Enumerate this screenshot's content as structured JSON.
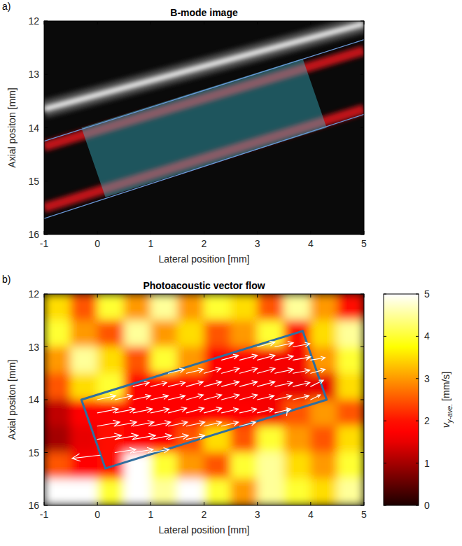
{
  "chart_data": [
    {
      "type": "image",
      "panel_label": "a)",
      "title": "B-mode image",
      "xlabel": "Lateral position [mm]",
      "ylabel": "Axial positon [mm]",
      "xlim": [
        -1,
        5
      ],
      "ylim": [
        16,
        12
      ],
      "xticks": [
        -1,
        0,
        1,
        2,
        3,
        4,
        5
      ],
      "yticks": [
        12,
        13,
        14,
        15,
        16
      ],
      "wall": {
        "x": [
          -1,
          5
        ],
        "y": [
          13.65,
          12.05
        ]
      },
      "signal": [
        {
          "x": [
            -1,
            5
          ],
          "y": [
            14.35,
            12.55
          ]
        },
        {
          "x": [
            -1,
            5
          ],
          "y": [
            15.5,
            13.65
          ]
        }
      ],
      "vessel_outline": [
        {
          "x": [
            -1,
            5
          ],
          "y": [
            14.25,
            12.35
          ]
        },
        {
          "x": [
            -1,
            5
          ],
          "y": [
            15.7,
            13.75
          ]
        }
      ],
      "roi": {
        "x": [
          -0.3,
          3.85,
          4.3,
          0.15
        ],
        "y": [
          14.0,
          12.7,
          14.0,
          15.3
        ]
      }
    },
    {
      "type": "heatmap",
      "panel_label": "b)",
      "title": "Photoacoustic vector flow",
      "xlabel": "Lateral position [mm]",
      "ylabel": "Axial positon [mm]",
      "xlim": [
        -1,
        5
      ],
      "ylim": [
        16,
        12
      ],
      "xticks": [
        -1,
        0,
        1,
        2,
        3,
        4,
        5
      ],
      "yticks": [
        12,
        13,
        14,
        15,
        16
      ],
      "cell_x": [
        -0.75,
        -0.25,
        0.25,
        0.75,
        1.25,
        1.75,
        2.25,
        2.75,
        3.25,
        3.75,
        4.25,
        4.75
      ],
      "cell_y": [
        12.25,
        12.75,
        13.25,
        13.75,
        14.25,
        14.75,
        15.25,
        15.75
      ],
      "cells": [
        [
          3.5,
          2.5,
          4.0,
          3.0,
          4.5,
          3.0,
          4.0,
          3.5,
          2.5,
          4.5,
          3.0,
          2.0
        ],
        [
          4.0,
          3.0,
          2.5,
          4.5,
          3.0,
          3.5,
          2.5,
          3.0,
          4.0,
          2.0,
          3.5,
          4.5
        ],
        [
          3.0,
          4.5,
          3.5,
          2.5,
          4.0,
          3.0,
          1.8,
          1.7,
          1.6,
          1.6,
          3.0,
          4.0
        ],
        [
          2.5,
          3.5,
          4.0,
          1.8,
          1.7,
          1.7,
          1.6,
          1.6,
          1.6,
          1.5,
          1.5,
          3.5
        ],
        [
          1.2,
          1.7,
          1.8,
          1.7,
          1.9,
          1.8,
          1.7,
          1.7,
          1.6,
          2.5,
          3.0,
          2.5
        ],
        [
          1.0,
          1.5,
          2.0,
          1.9,
          1.8,
          2.5,
          3.5,
          2.5,
          4.0,
          3.0,
          2.5,
          3.5
        ],
        [
          2.5,
          1.8,
          2.0,
          5.0,
          4.0,
          3.0,
          2.5,
          4.0,
          4.5,
          3.5,
          3.0,
          4.0
        ],
        [
          5.0,
          5.0,
          4.0,
          5.0,
          4.5,
          5.0,
          4.0,
          3.0,
          4.5,
          4.0,
          3.5,
          4.5
        ]
      ],
      "colorbar": {
        "range": [
          0,
          5
        ],
        "ticks": [
          0,
          1,
          2,
          3,
          4,
          5
        ],
        "label": {
          "symbol": "v",
          "subscript": "y-ave.",
          "unit": "[mm/s]"
        }
      },
      "roi": {
        "x": [
          -0.3,
          3.85,
          4.3,
          0.15
        ],
        "y": [
          14.0,
          12.7,
          14.0,
          15.3
        ]
      },
      "vectors": [
        {
          "y": 13.0,
          "x": [
            3.0,
            3.33,
            3.67
          ],
          "u": [
            2.2,
            2.3,
            2.1
          ],
          "v": [
            -0.6,
            -0.5,
            -0.4
          ]
        },
        {
          "y": 13.25,
          "x": [
            2.33,
            2.67,
            3.0,
            3.33,
            3.67,
            4.0
          ],
          "u": [
            2.1,
            2.2,
            2.2,
            2.3,
            2.2,
            1.8
          ],
          "v": [
            -0.6,
            -0.6,
            -0.6,
            -0.5,
            -0.4,
            -0.3
          ]
        },
        {
          "y": 13.5,
          "x": [
            1.33,
            1.67,
            2.0,
            2.33,
            2.67,
            3.0,
            3.33,
            3.67,
            4.0
          ],
          "u": [
            2.0,
            2.1,
            2.1,
            2.2,
            2.2,
            2.2,
            2.3,
            2.1,
            1.8
          ],
          "v": [
            -0.5,
            -0.5,
            -0.6,
            -0.6,
            -0.6,
            -0.6,
            -0.5,
            -0.4,
            -0.5
          ]
        },
        {
          "y": 13.75,
          "x": [
            0.67,
            1.0,
            1.33,
            1.67,
            2.0,
            2.33,
            2.67,
            3.0,
            3.33,
            3.67,
            4.0
          ],
          "u": [
            2.0,
            2.0,
            2.1,
            2.1,
            2.2,
            2.2,
            2.2,
            2.2,
            2.2,
            2.1,
            1.6
          ],
          "v": [
            -0.5,
            -0.5,
            -0.5,
            -0.6,
            -0.6,
            -0.6,
            -0.6,
            -0.6,
            -0.5,
            -0.5,
            -0.8
          ]
        },
        {
          "y": 14.0,
          "x": [
            0,
            0.33,
            0.67,
            1.0,
            1.33,
            1.67,
            2.0,
            2.33,
            2.67,
            3.0,
            3.33,
            3.67,
            4.0
          ],
          "u": [
            2.3,
            2.2,
            2.2,
            2.2,
            2.1,
            2.1,
            2.2,
            2.2,
            2.2,
            2.1,
            2.1,
            2.0,
            1.2
          ],
          "v": [
            -0.5,
            -0.5,
            -0.5,
            -0.5,
            -0.5,
            -0.6,
            -0.6,
            -0.6,
            -0.6,
            -0.5,
            -0.5,
            -0.5,
            -0.6
          ]
        },
        {
          "y": 14.25,
          "x": [
            0,
            0.33,
            0.67,
            1.0,
            1.33,
            1.67,
            2.0,
            2.33,
            2.67,
            3.0,
            3.33
          ],
          "u": [
            2.6,
            2.5,
            2.4,
            2.3,
            2.3,
            2.2,
            2.2,
            2.1,
            2.1,
            2.0,
            2.0
          ],
          "v": [
            -0.5,
            -0.5,
            -0.5,
            -0.5,
            -0.6,
            -0.6,
            -0.6,
            -0.5,
            -0.5,
            -0.5,
            -0.5
          ]
        },
        {
          "y": 14.3,
          "x": [
            3.55
          ],
          "u": [
            0.1
          ],
          "v": [
            -0.9
          ]
        },
        {
          "y": 14.5,
          "x": [
            0,
            0.33,
            0.67,
            1.0,
            1.33,
            1.67,
            2.0,
            2.33,
            2.67
          ],
          "u": [
            2.8,
            2.7,
            2.6,
            2.5,
            2.4,
            2.3,
            2.2,
            2.1,
            2.0
          ],
          "v": [
            -0.5,
            -0.5,
            -0.5,
            -0.5,
            -0.5,
            -0.5,
            -0.5,
            -0.5,
            -0.5
          ]
        },
        {
          "y": 14.75,
          "x": [
            0,
            0.33,
            0.67,
            1.0,
            1.33,
            1.67
          ],
          "u": [
            3.0,
            2.9,
            2.8,
            2.6,
            2.5,
            2.3
          ],
          "v": [
            -0.5,
            -0.5,
            -0.5,
            -0.5,
            -0.5,
            -0.5
          ]
        },
        {
          "y": 15.0,
          "x": [
            0.33,
            0.67,
            1.0
          ],
          "u": [
            2.6,
            2.5,
            2.3
          ],
          "v": [
            -0.4,
            -0.4,
            -0.4
          ]
        },
        {
          "y": 15.05,
          "x": [
            0.05
          ],
          "u": [
            -3.5
          ],
          "v": [
            0.4
          ]
        }
      ]
    }
  ]
}
